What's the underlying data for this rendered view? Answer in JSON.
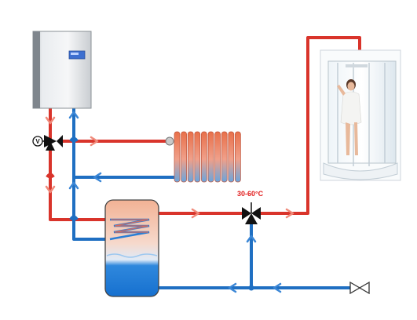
{
  "mixing_valve": {
    "temperature_label": "30-60°C"
  },
  "valve_symbol_letter": "V",
  "colors": {
    "hot_pipe": "#d9342b",
    "cold_pipe": "#1f6fc2",
    "hot_arrow": "#f08a7a",
    "cold_arrow": "#3a86d6",
    "label": "#e11d1d",
    "tank_top": "#f3b89a",
    "tank_bottom": "#1e80db"
  },
  "icons": [
    "electric-boiler-icon",
    "three-way-valve-icon",
    "radiator-icon",
    "shower-cabin-icon",
    "thermostatic-mixing-valve-icon",
    "storage-tank-icon",
    "shutoff-valve-icon"
  ]
}
